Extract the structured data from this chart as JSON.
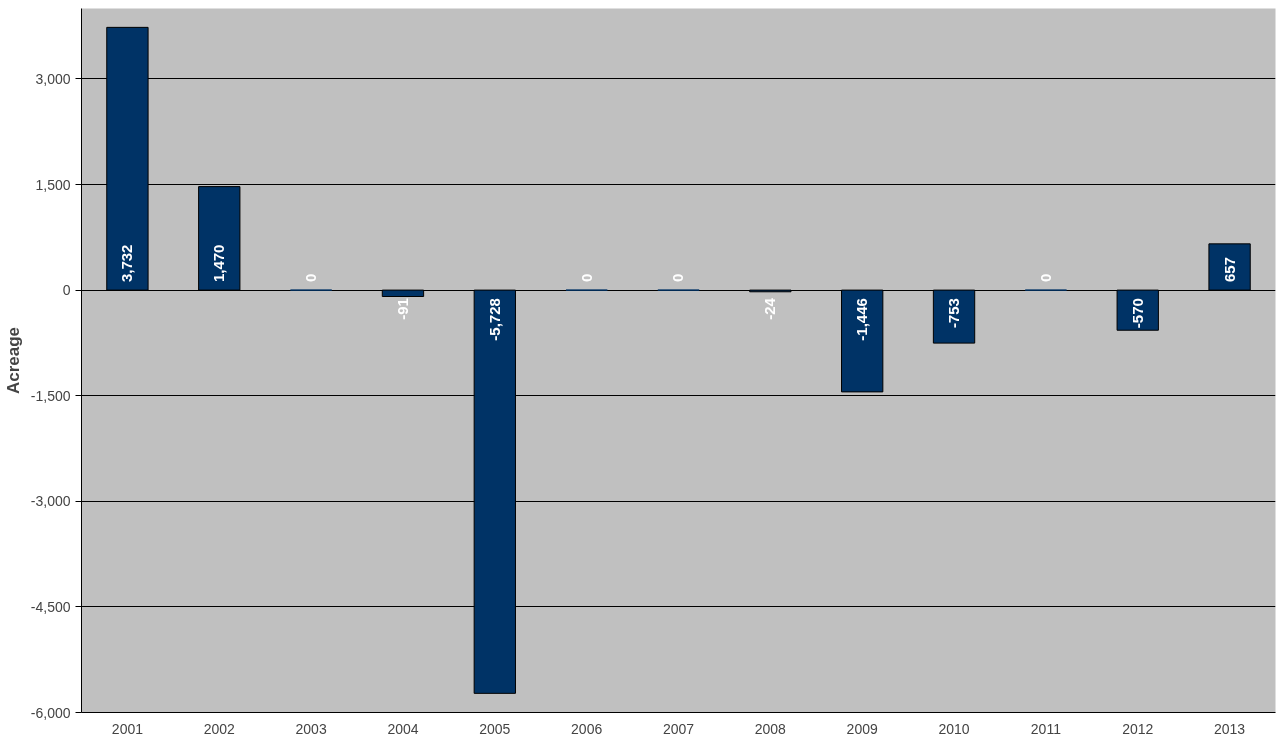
{
  "chart_data": {
    "type": "bar",
    "ylabel": "Acreage",
    "categories": [
      "2001",
      "2002",
      "2003",
      "2004",
      "2005",
      "2006",
      "2007",
      "2008",
      "2009",
      "2010",
      "2011",
      "2012",
      "2013"
    ],
    "values": [
      3732,
      1470,
      0,
      -91,
      -5728,
      0,
      0,
      -24,
      -1446,
      -753,
      0,
      -570,
      657
    ],
    "value_labels": [
      "3,732",
      "1,470",
      "0",
      "-91",
      "-5,728",
      "0",
      "0",
      "-24",
      "-1,446",
      "-753",
      "0",
      "-570",
      "657"
    ],
    "color": "#003366",
    "ylim": [
      -6000,
      4000
    ],
    "yticks": [
      {
        "value": -6000,
        "label": "-6,000"
      },
      {
        "value": -4500,
        "label": "-4,500"
      },
      {
        "value": -3000,
        "label": "-3,000"
      },
      {
        "value": -1500,
        "label": "-1,500"
      },
      0,
      {
        "value": 1500,
        "label": "1,500"
      },
      {
        "value": 3000,
        "label": "3,000"
      }
    ],
    "grid": "y"
  }
}
